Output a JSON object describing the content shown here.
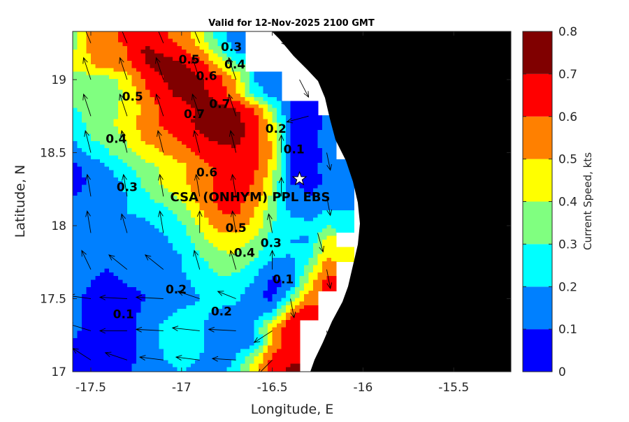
{
  "chart_data": {
    "type": "heatmap",
    "subtype": "filled-contour-map-with-vectors",
    "title": "Valid for 12-Nov-2025 2100 GMT",
    "xlabel": "Longitude, E",
    "ylabel": "Latitude, N",
    "xlim": [
      -17.6,
      -15.185
    ],
    "ylim": [
      17.0,
      19.33
    ],
    "xticks": [
      -17.5,
      -17,
      -16.5,
      -16,
      -15.5
    ],
    "xtick_labels": [
      "-17.5",
      "-17",
      "-16.5",
      "-16",
      "-15.5"
    ],
    "yticks": [
      17,
      17.5,
      18,
      18.5,
      19
    ],
    "ytick_labels": [
      "17",
      "17.5",
      "18",
      "18.5",
      "19"
    ],
    "colorbar": {
      "label": "Current Speed, kts",
      "levels": [
        0,
        0.1,
        0.2,
        0.3,
        0.4,
        0.5,
        0.6,
        0.7,
        0.8
      ],
      "tick_labels": [
        "0",
        "0.1",
        "0.2",
        "0.3",
        "0.4",
        "0.5",
        "0.6",
        "0.7",
        "0.8"
      ],
      "colors": [
        "#0000ff",
        "#0080ff",
        "#00ffff",
        "#80ff80",
        "#ffff00",
        "#ff8000",
        "#ff0000",
        "#800000"
      ]
    },
    "land_color": "#000000",
    "nodata_color": "#ffffff",
    "grid": {
      "lon": [
        -17.6,
        -17.5,
        -17.4,
        -17.3,
        -17.2,
        -17.1,
        -17.0,
        -16.9,
        -16.8,
        -16.7,
        -16.6,
        -16.5,
        -16.4,
        -16.3,
        -16.2,
        -16.1,
        -16.0
      ],
      "lat": [
        19.3,
        19.2,
        19.1,
        19.0,
        18.9,
        18.8,
        18.7,
        18.6,
        18.5,
        18.4,
        18.3,
        18.2,
        18.1,
        18.0,
        17.9,
        17.8,
        17.7,
        17.6,
        17.5,
        17.4,
        17.3,
        17.2,
        17.1,
        17.0
      ],
      "speed": [
        [
          0.38,
          0.52,
          0.57,
          0.63,
          0.65,
          0.62,
          0.55,
          0.43,
          0.25,
          0.12,
          null,
          null,
          null,
          null,
          null,
          null,
          null
        ],
        [
          0.38,
          0.52,
          0.56,
          0.6,
          0.72,
          0.68,
          0.62,
          0.52,
          0.35,
          0.18,
          null,
          null,
          null,
          null,
          null,
          null,
          null
        ],
        [
          0.45,
          0.5,
          0.55,
          0.58,
          0.7,
          0.74,
          0.72,
          0.65,
          0.5,
          0.32,
          null,
          null,
          null,
          null,
          null,
          null,
          null
        ],
        [
          0.35,
          0.33,
          0.36,
          0.45,
          0.62,
          0.7,
          0.74,
          0.72,
          0.65,
          0.5,
          0.2,
          0.12,
          null,
          null,
          null,
          null,
          null
        ],
        [
          0.33,
          0.32,
          0.35,
          0.42,
          0.58,
          0.68,
          0.72,
          0.73,
          0.66,
          0.53,
          0.27,
          0.15,
          null,
          null,
          null,
          null,
          null
        ],
        [
          0.3,
          0.32,
          0.36,
          0.44,
          0.52,
          0.62,
          0.66,
          0.72,
          0.74,
          0.7,
          0.6,
          0.35,
          0.07,
          0.08,
          null,
          null,
          null
        ],
        [
          0.25,
          0.33,
          0.38,
          0.45,
          0.55,
          0.62,
          0.67,
          0.72,
          0.76,
          0.74,
          0.65,
          0.45,
          0.08,
          0.06,
          0.12,
          null,
          null
        ],
        [
          0.2,
          0.3,
          0.35,
          0.42,
          0.52,
          0.56,
          0.62,
          0.68,
          0.72,
          0.73,
          0.65,
          0.47,
          0.08,
          0.06,
          0.13,
          null,
          null
        ],
        [
          0.15,
          0.22,
          0.3,
          0.38,
          0.45,
          0.5,
          0.57,
          0.62,
          0.67,
          0.68,
          0.65,
          0.5,
          0.08,
          0.06,
          0.12,
          null,
          null
        ],
        [
          0.08,
          0.13,
          0.2,
          0.28,
          0.35,
          0.42,
          0.47,
          0.55,
          0.62,
          0.65,
          0.63,
          0.45,
          0.08,
          0.07,
          0.12,
          0.13,
          null
        ],
        [
          0.05,
          0.12,
          0.16,
          0.22,
          0.33,
          0.42,
          0.48,
          0.56,
          0.62,
          0.65,
          0.6,
          0.42,
          0.1,
          0.06,
          0.12,
          0.13,
          null
        ],
        [
          0.1,
          0.13,
          0.16,
          0.2,
          0.28,
          0.35,
          0.43,
          0.53,
          0.62,
          0.64,
          0.57,
          0.38,
          0.16,
          0.1,
          0.14,
          0.16,
          null
        ],
        [
          0.15,
          0.15,
          0.17,
          0.2,
          0.23,
          0.27,
          0.35,
          0.48,
          0.6,
          0.62,
          0.5,
          0.33,
          0.18,
          0.15,
          0.2,
          0.2,
          null
        ],
        [
          0.2,
          0.15,
          0.13,
          0.15,
          0.18,
          0.22,
          0.28,
          0.42,
          0.53,
          0.55,
          0.48,
          0.3,
          0.25,
          0.22,
          0.3,
          0.25,
          null
        ],
        [
          0.2,
          0.15,
          0.12,
          0.12,
          0.15,
          0.18,
          0.25,
          0.35,
          0.45,
          0.45,
          0.38,
          0.25,
          0.2,
          0.18,
          0.45,
          null,
          null
        ],
        [
          0.15,
          0.13,
          0.12,
          0.12,
          0.14,
          0.17,
          0.2,
          0.3,
          0.38,
          0.4,
          0.32,
          0.23,
          0.2,
          0.25,
          0.5,
          0.45,
          null
        ],
        [
          0.12,
          0.11,
          0.1,
          0.12,
          0.14,
          0.17,
          0.2,
          0.25,
          0.32,
          0.32,
          0.25,
          0.12,
          0.12,
          0.35,
          0.55,
          null,
          null
        ],
        [
          0.12,
          0.1,
          0.08,
          0.1,
          0.12,
          0.15,
          0.18,
          0.22,
          0.28,
          0.25,
          0.18,
          0.06,
          0.15,
          0.45,
          0.65,
          null,
          null
        ],
        [
          0.12,
          0.08,
          0.06,
          0.07,
          0.1,
          0.13,
          0.16,
          0.2,
          0.25,
          0.22,
          0.12,
          0.08,
          0.3,
          0.55,
          null,
          null,
          null
        ],
        [
          0.12,
          0.07,
          0.05,
          0.07,
          0.12,
          0.18,
          0.22,
          0.22,
          0.18,
          0.15,
          0.14,
          0.22,
          0.55,
          0.68,
          null,
          null,
          null
        ],
        [
          0.12,
          0.07,
          0.06,
          0.08,
          0.13,
          0.22,
          0.25,
          0.22,
          0.15,
          0.14,
          0.2,
          0.5,
          0.7,
          null,
          null,
          null,
          null
        ],
        [
          0.1,
          0.07,
          0.06,
          0.08,
          0.13,
          0.22,
          0.25,
          0.22,
          0.15,
          0.12,
          0.15,
          0.5,
          0.68,
          null,
          null,
          null,
          null
        ],
        [
          0.1,
          0.06,
          0.05,
          0.07,
          0.12,
          0.2,
          0.23,
          0.2,
          0.15,
          0.2,
          0.4,
          0.62,
          0.68,
          null,
          null,
          null,
          null
        ],
        [
          0.1,
          0.06,
          0.06,
          0.09,
          0.14,
          0.18,
          0.2,
          0.18,
          0.14,
          0.25,
          0.45,
          0.65,
          0.72,
          null,
          null,
          null,
          null
        ]
      ]
    },
    "vectors": [
      [
        -17.5,
        19.25,
        -0.05,
        0.15
      ],
      [
        -17.3,
        19.25,
        -0.05,
        0.15
      ],
      [
        -17.1,
        19.25,
        -0.05,
        0.15
      ],
      [
        -16.9,
        19.25,
        -0.05,
        0.15
      ],
      [
        -16.45,
        19.25,
        0.1,
        -0.05
      ],
      [
        -17.5,
        19.0,
        -0.04,
        0.15
      ],
      [
        -17.3,
        19.0,
        -0.04,
        0.15
      ],
      [
        -17.1,
        19.0,
        -0.04,
        0.15
      ],
      [
        -16.9,
        19.0,
        -0.04,
        0.15
      ],
      [
        -16.7,
        19.0,
        -0.04,
        0.15
      ],
      [
        -16.35,
        19.0,
        0.05,
        -0.12
      ],
      [
        -17.5,
        18.75,
        -0.04,
        0.15
      ],
      [
        -17.3,
        18.75,
        -0.04,
        0.15
      ],
      [
        -17.1,
        18.75,
        -0.04,
        0.15
      ],
      [
        -16.9,
        18.75,
        -0.04,
        0.15
      ],
      [
        -16.7,
        18.75,
        -0.04,
        0.15
      ],
      [
        -16.3,
        18.75,
        -0.12,
        -0.04
      ],
      [
        -17.5,
        18.5,
        -0.03,
        0.15
      ],
      [
        -17.3,
        18.5,
        -0.03,
        0.15
      ],
      [
        -17.1,
        18.5,
        -0.03,
        0.15
      ],
      [
        -16.9,
        18.5,
        -0.03,
        0.15
      ],
      [
        -16.7,
        18.5,
        -0.03,
        0.15
      ],
      [
        -16.45,
        18.5,
        0,
        0.12
      ],
      [
        -16.2,
        18.5,
        0.02,
        -0.12
      ],
      [
        -17.5,
        18.2,
        -0.02,
        0.15
      ],
      [
        -17.3,
        18.2,
        -0.02,
        0.15
      ],
      [
        -17.1,
        18.2,
        -0.02,
        0.15
      ],
      [
        -16.9,
        18.2,
        -0.02,
        0.15
      ],
      [
        -16.7,
        18.2,
        -0.02,
        0.15
      ],
      [
        -16.45,
        18.2,
        0,
        0.13
      ],
      [
        -16.2,
        18.2,
        0.02,
        -0.13
      ],
      [
        -17.5,
        17.95,
        -0.02,
        0.15
      ],
      [
        -17.3,
        17.95,
        -0.03,
        0.13
      ],
      [
        -17.1,
        17.95,
        -0.02,
        0.15
      ],
      [
        -16.9,
        17.95,
        0,
        0.15
      ],
      [
        -16.7,
        17.95,
        -0.02,
        0.15
      ],
      [
        -16.5,
        17.95,
        -0.02,
        0.13
      ],
      [
        -16.25,
        17.95,
        0.03,
        -0.13
      ],
      [
        -17.5,
        17.7,
        -0.05,
        0.13
      ],
      [
        -17.3,
        17.7,
        -0.1,
        0.1
      ],
      [
        -17.1,
        17.7,
        -0.1,
        0.1
      ],
      [
        -16.9,
        17.7,
        -0.03,
        0.13
      ],
      [
        -16.7,
        17.7,
        -0.03,
        0.13
      ],
      [
        -16.5,
        17.7,
        0,
        0.13
      ],
      [
        -16.2,
        17.7,
        0.02,
        -0.13
      ],
      [
        -17.5,
        17.5,
        -0.12,
        0.02
      ],
      [
        -17.3,
        17.5,
        -0.15,
        0.01
      ],
      [
        -17.1,
        17.5,
        -0.15,
        0.01
      ],
      [
        -16.9,
        17.5,
        -0.12,
        0.05
      ],
      [
        -16.7,
        17.5,
        -0.1,
        0.05
      ],
      [
        -16.4,
        17.5,
        0.02,
        -0.13
      ],
      [
        -17.5,
        17.28,
        -0.13,
        0.05
      ],
      [
        -17.3,
        17.28,
        -0.15,
        0
      ],
      [
        -17.1,
        17.28,
        -0.15,
        0.01
      ],
      [
        -16.9,
        17.28,
        -0.15,
        0.02
      ],
      [
        -16.7,
        17.28,
        -0.15,
        0.01
      ],
      [
        -16.5,
        17.28,
        -0.1,
        -0.08
      ],
      [
        -16.2,
        17.28,
        0.02,
        -0.13
      ],
      [
        -17.5,
        17.08,
        -0.1,
        0.08
      ],
      [
        -17.3,
        17.08,
        -0.12,
        0.05
      ],
      [
        -17.1,
        17.08,
        -0.13,
        0.02
      ],
      [
        -16.9,
        17.08,
        -0.13,
        0.02
      ],
      [
        -16.7,
        17.08,
        -0.13,
        0.01
      ],
      [
        -16.5,
        17.08,
        -0.08,
        -0.1
      ]
    ],
    "contour_labels": [
      {
        "text": "0.5",
        "lon": -17.27,
        "lat": 18.88
      },
      {
        "text": "0.4",
        "lon": -17.36,
        "lat": 18.59
      },
      {
        "text": "0.3",
        "lon": -17.3,
        "lat": 18.26
      },
      {
        "text": "0.5",
        "lon": -16.9,
        "lat": 19.12
      },
      {
        "text": "0.6",
        "lon": -16.87,
        "lat": 19.04
      },
      {
        "text": "0.3",
        "lon": -16.76,
        "lat": 19.2
      },
      {
        "text": "0.4",
        "lon": -16.76,
        "lat": 19.1
      },
      {
        "text": "0.7",
        "lon": -16.93,
        "lat": 18.76
      },
      {
        "text": "0.7",
        "lon": -16.79,
        "lat": 18.83
      },
      {
        "text": "0.6",
        "lon": -16.86,
        "lat": 18.36
      },
      {
        "text": "0.2",
        "lon": -16.48,
        "lat": 18.66
      },
      {
        "text": "0.1",
        "lon": -16.38,
        "lat": 18.52
      },
      {
        "text": "0.5",
        "lon": -16.7,
        "lat": 17.98
      },
      {
        "text": "0.4",
        "lon": -16.63,
        "lat": 17.83
      },
      {
        "text": "0.3",
        "lon": -16.53,
        "lat": 17.85
      },
      {
        "text": "0.1",
        "lon": -16.44,
        "lat": 17.63
      },
      {
        "text": "0.2",
        "lon": -17.03,
        "lat": 17.56
      },
      {
        "text": "0.1",
        "lon": -17.32,
        "lat": 17.39
      },
      {
        "text": "0.2",
        "lon": -16.78,
        "lat": 17.41
      }
    ],
    "station": {
      "name": "CSA (ONHYM) PPL EBS",
      "lon": -16.35,
      "lat": 18.32,
      "marker": "star-icon"
    }
  }
}
